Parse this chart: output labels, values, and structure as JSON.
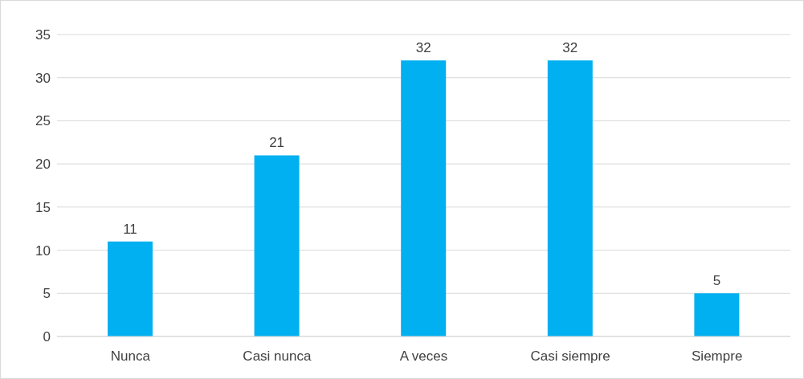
{
  "chart_data": {
    "type": "bar",
    "categories": [
      "Nunca",
      "Casi nunca",
      "A veces",
      "Casi siempre",
      "Siempre"
    ],
    "values": [
      11,
      21,
      32,
      32,
      5
    ],
    "color": "#00b0f0",
    "ylim": [
      0,
      35
    ],
    "yticks": [
      0,
      5,
      10,
      15,
      20,
      25,
      30,
      35
    ],
    "grid": "y",
    "data_labels": true
  }
}
